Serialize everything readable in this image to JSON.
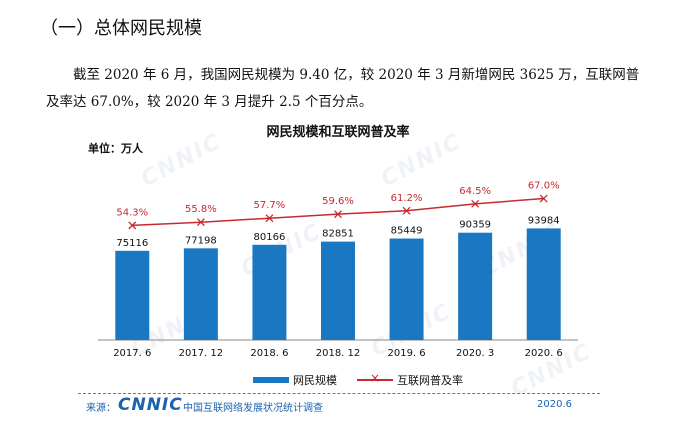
{
  "section": {
    "title": "（一）总体网民规模"
  },
  "paragraph": {
    "line1": "截至 2020 年 6 月，我国网民规模为 9.40 亿，较 2020 年 3 月新增网民 3625 万，互联网普",
    "line2": "及率达 67.0%，较 2020 年 3 月提升 2.5 个百分点。"
  },
  "chart_data": {
    "type": "bar",
    "title": "网民规模和互联网普及率",
    "unit_label": "单位：万人",
    "categories": [
      "2017. 6",
      "2017. 12",
      "2018. 6",
      "2018. 12",
      "2019. 6",
      "2020. 3",
      "2020. 6"
    ],
    "series": [
      {
        "name": "网民规模",
        "kind": "bar",
        "color": "#1a78c2",
        "values": [
          75116,
          77198,
          80166,
          82851,
          85449,
          90359,
          93984
        ]
      },
      {
        "name": "互联网普及率",
        "kind": "line",
        "color": "#c8292e",
        "values": [
          54.3,
          55.8,
          57.7,
          59.6,
          61.2,
          64.5,
          67.0
        ],
        "labels": [
          "54.3%",
          "55.8%",
          "57.7%",
          "59.6%",
          "61.2%",
          "64.5%",
          "67.0%"
        ]
      }
    ],
    "ylim_bars": [
      0,
      160000
    ],
    "ylim_line": [
      0,
      90
    ]
  },
  "legend": {
    "bar_label": "网民规模",
    "line_label": "互联网普及率"
  },
  "footer": {
    "source_label": "来源：",
    "logo": "CNNIC",
    "survey": "中国互联网络发展状况统计调查",
    "date": "2020.6"
  },
  "watermark": "CNNIC"
}
